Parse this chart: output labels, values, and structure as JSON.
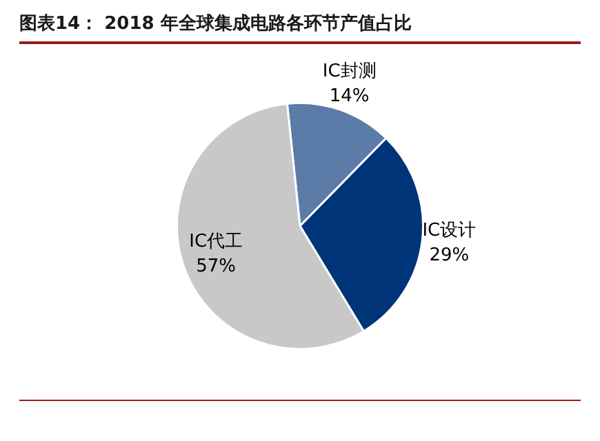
{
  "chart_data": {
    "type": "pie",
    "title": "图表14： 2018 年全球集成电路各环节产值占比",
    "categories": [
      "IC封测",
      "IC设计",
      "IC代工"
    ],
    "values": [
      14,
      29,
      57
    ],
    "value_labels": [
      "14%",
      "29%",
      "57%"
    ],
    "colors": [
      "#5b7ba8",
      "#003478",
      "#c8c8c8"
    ],
    "legend": false
  }
}
